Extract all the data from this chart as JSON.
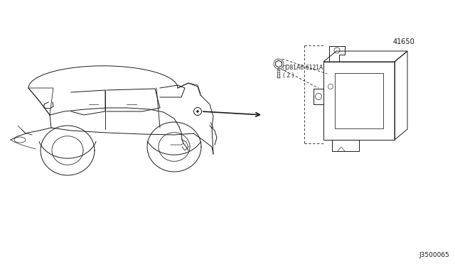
{
  "bg_color": "#ffffff",
  "line_color": "#1a1a1a",
  "diagram_code": "J3500065",
  "part1_label": "ⓇD81A6-6121A\n( 2 )",
  "part2_label": "41650",
  "fig_width": 6.4,
  "fig_height": 3.72,
  "dpi": 100
}
